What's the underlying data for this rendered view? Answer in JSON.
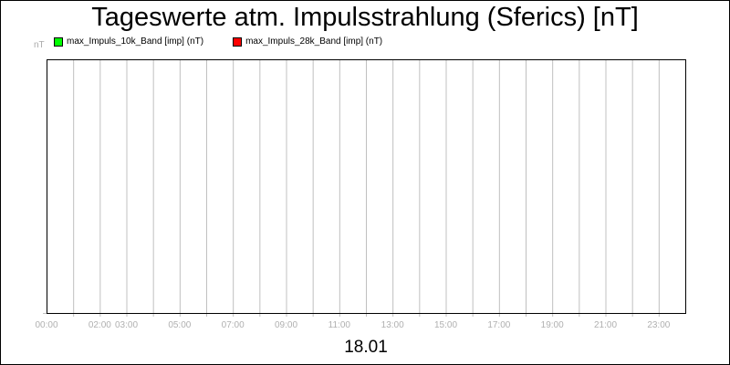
{
  "chart_data": {
    "type": "line",
    "title": "Tageswerte atm. Impulsstrahlung (Sferics) [nT]",
    "ylabel": "nT",
    "xlabel": "18.01",
    "xlim": [
      "00:00",
      "24:00"
    ],
    "x_tick_labels": [
      {
        "hour": 0,
        "label": "00:00"
      },
      {
        "hour": 2,
        "label": "02:00"
      },
      {
        "hour": 3,
        "label": "03:00"
      },
      {
        "hour": 5,
        "label": "05:00"
      },
      {
        "hour": 7,
        "label": "07:00"
      },
      {
        "hour": 9,
        "label": "09:00"
      },
      {
        "hour": 11,
        "label": "11:00"
      },
      {
        "hour": 13,
        "label": "13:00"
      },
      {
        "hour": 15,
        "label": "15:00"
      },
      {
        "hour": 17,
        "label": "17:00"
      },
      {
        "hour": 19,
        "label": "19:00"
      },
      {
        "hour": 21,
        "label": "21:00"
      },
      {
        "hour": 23,
        "label": "23:00"
      }
    ],
    "grid": "vertical hourly",
    "legend_placement": "top-left",
    "series": [
      {
        "name": "max_Impuls_10k_Band [imp] (nT)",
        "color": "#00ff00",
        "values": []
      },
      {
        "name": "max_Impuls_28k_Band [imp] (nT)",
        "color": "#ff0000",
        "values": []
      }
    ]
  }
}
